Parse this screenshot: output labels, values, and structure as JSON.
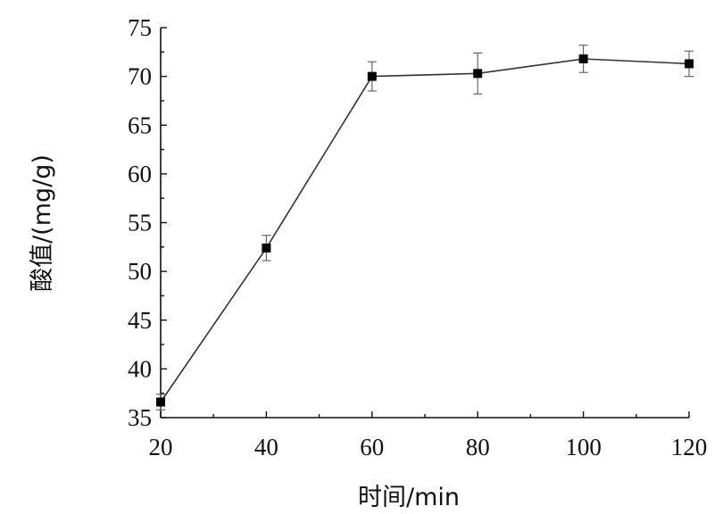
{
  "chart_data": {
    "type": "line",
    "xlabel": "时间/min",
    "ylabel": "酸值/(mg/g)",
    "xlim": [
      20,
      120
    ],
    "ylim": [
      35,
      75
    ],
    "x_ticks": [
      20,
      40,
      60,
      80,
      100,
      120
    ],
    "y_ticks": [
      35,
      40,
      45,
      50,
      55,
      60,
      65,
      70,
      75
    ],
    "grid": false,
    "series": [
      {
        "x": [
          20,
          40,
          60,
          80,
          100,
          120
        ],
        "y": [
          36.6,
          52.4,
          70.0,
          70.3,
          71.8,
          71.3
        ],
        "error": [
          0.8,
          1.3,
          1.5,
          2.1,
          1.4,
          1.3
        ]
      }
    ]
  }
}
